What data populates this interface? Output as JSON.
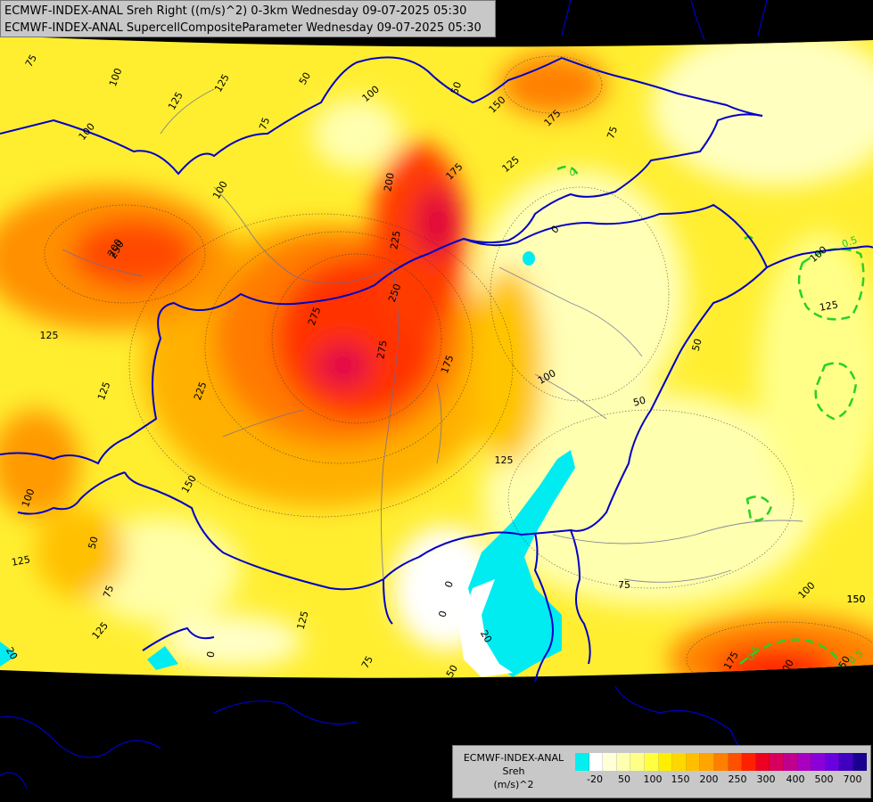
{
  "header": {
    "line1": "ECMWF-INDEX-ANAL Sreh Right ((m/s)^2) 0-3km Wednesday 09-07-2025 05:30",
    "line2": "ECMWF-INDEX-ANAL SupercellCompositeParameter Wednesday 09-07-2025 05:30"
  },
  "legend": {
    "title1": "ECMWF-INDEX-ANAL",
    "title2": "Sreh",
    "title3": "(m/s)^2",
    "colors": [
      "#00f0f0",
      "#ffffff",
      "#ffffd8",
      "#ffffb0",
      "#ffff88",
      "#ffff40",
      "#ffee00",
      "#ffd700",
      "#ffbf00",
      "#ffa500",
      "#ff7f00",
      "#ff5000",
      "#ff2000",
      "#ee0020",
      "#d8005c",
      "#c0008c",
      "#a800c0",
      "#8a00d8",
      "#6a00e0",
      "#4000c0",
      "#1a0090"
    ],
    "ticks": [
      "-20",
      "50",
      "100",
      "150",
      "200",
      "250",
      "300",
      "400",
      "500",
      "700"
    ]
  },
  "contour_labels": [
    "75",
    "100",
    "125",
    "50",
    "100",
    "75",
    "50",
    "125",
    "150",
    "175",
    "100",
    "75",
    "200",
    "175",
    "225",
    "250",
    "275",
    "275",
    "175",
    "100",
    "225",
    "200",
    "250",
    "125",
    "125",
    "125",
    "150",
    "100",
    "50",
    "75",
    "125",
    "0",
    "20",
    "0",
    "50",
    "100",
    "125",
    "150",
    "200",
    "175",
    "75",
    "0",
    "125",
    "50",
    "100",
    "50",
    "125",
    "75",
    "0",
    "20",
    "50",
    "150",
    "125",
    "100"
  ],
  "scp_labels": [
    "0",
    "0.5",
    "0.5",
    "0.5"
  ]
}
